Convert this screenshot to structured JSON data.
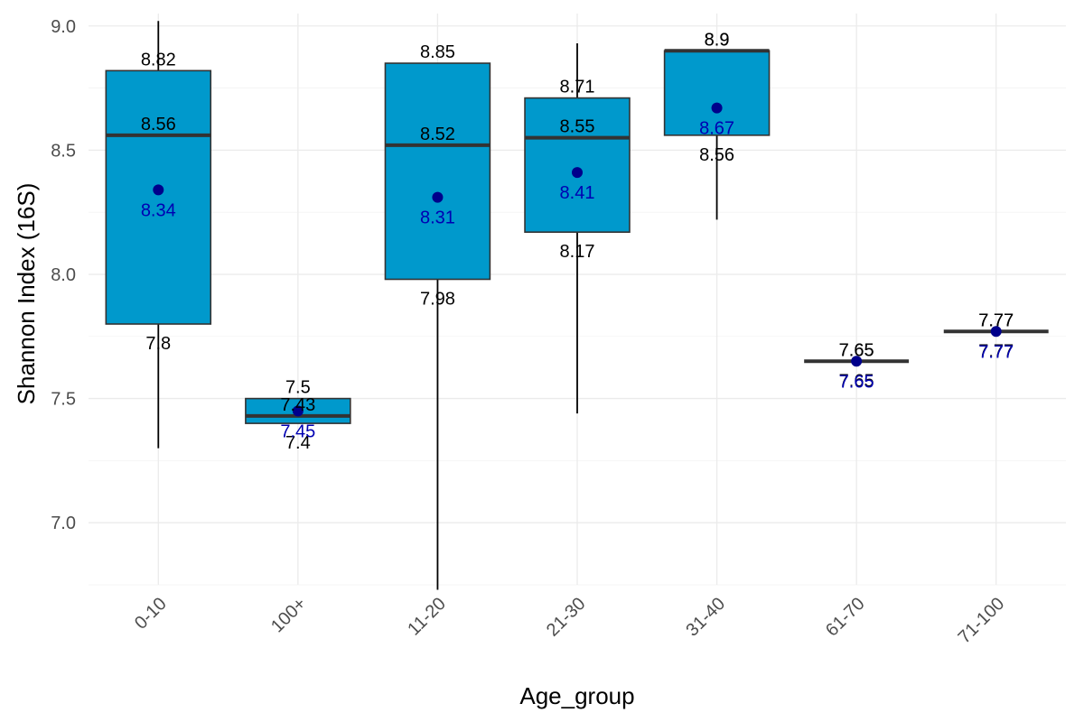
{
  "chart_data": {
    "type": "boxplot",
    "xlabel": "Age_group",
    "ylabel": "Shannon Index (16S)",
    "ylim": [
      6.75,
      9.05
    ],
    "yticks": [
      7.0,
      7.5,
      8.0,
      8.5,
      9.0
    ],
    "ytick_labels": [
      "7.0",
      "7.5",
      "8.0",
      "8.5",
      "9.0"
    ],
    "grid": true,
    "legend": "none",
    "colors": {
      "box_fill": "#0099CC",
      "box_stroke": "#333333",
      "mean_point": "#00008B",
      "mean_text": "#0000B2",
      "stat_text": "#000000"
    },
    "categories": [
      "0-10",
      "100+",
      "11-20",
      "21-30",
      "31-40",
      "61-70",
      "71-100"
    ],
    "boxes": [
      {
        "category": "0-10",
        "whisker_low": 7.3,
        "q1": 7.8,
        "median": 8.56,
        "q3": 8.82,
        "whisker_high": 9.02,
        "mean": 8.34,
        "q1_label": "7.8",
        "median_label": "8.56",
        "q3_label": "8.82",
        "mean_label": "8.34"
      },
      {
        "category": "100+",
        "whisker_low": 7.4,
        "q1": 7.4,
        "median": 7.43,
        "q3": 7.5,
        "whisker_high": 7.5,
        "mean": 7.45,
        "q1_label": "7.4",
        "median_label": "7.43",
        "q3_label": "7.5",
        "mean_label": "7.45"
      },
      {
        "category": "11-20",
        "whisker_low": 6.73,
        "q1": 7.98,
        "median": 8.52,
        "q3": 8.85,
        "whisker_high": 8.85,
        "mean": 8.31,
        "q1_label": "7.98",
        "median_label": "8.52",
        "q3_label": "8.85",
        "mean_label": "8.31"
      },
      {
        "category": "21-30",
        "whisker_low": 7.44,
        "q1": 8.17,
        "median": 8.55,
        "q3": 8.71,
        "whisker_high": 8.93,
        "mean": 8.41,
        "q1_label": "8.17",
        "median_label": "8.55",
        "q3_label": "8.71",
        "mean_label": "8.41"
      },
      {
        "category": "31-40",
        "whisker_low": 8.22,
        "q1": 8.56,
        "median": 8.9,
        "q3": 8.9,
        "whisker_high": 8.9,
        "mean": 8.67,
        "q1_label": "8.56",
        "median_label": "8.9",
        "q3_label": "8.9",
        "mean_label": "8.67"
      },
      {
        "category": "61-70",
        "whisker_low": 7.65,
        "q1": 7.65,
        "median": 7.65,
        "q3": 7.65,
        "whisker_high": 7.65,
        "mean": 7.65,
        "q1_label": "7.65",
        "median_label": "7.65",
        "q3_label": "7.65",
        "mean_label": "7.65"
      },
      {
        "category": "71-100",
        "whisker_low": 7.77,
        "q1": 7.77,
        "median": 7.77,
        "q3": 7.77,
        "whisker_high": 7.77,
        "mean": 7.77,
        "q1_label": "7.77",
        "median_label": "7.77",
        "q3_label": "7.77",
        "mean_label": "7.77"
      }
    ]
  }
}
